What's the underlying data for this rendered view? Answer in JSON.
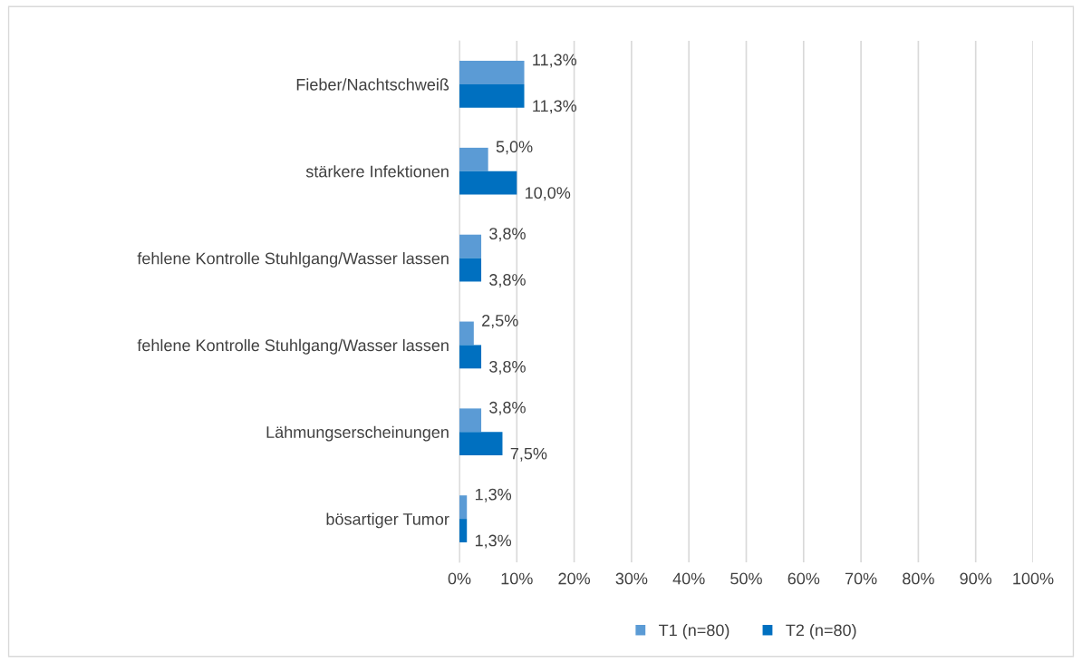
{
  "chart_data": {
    "type": "bar",
    "orientation": "horizontal",
    "categories": [
      "Fieber/Nachtschweiß",
      "stärkere Infektionen",
      "fehlene Kontrolle Stuhlgang/Wasser lassen",
      "fehlene Kontrolle Stuhlgang/Wasser lassen",
      "Lähmungserscheinungen",
      "bösartiger Tumor"
    ],
    "series": [
      {
        "name": "T1 (n=80)",
        "color": "#5b9bd5",
        "values": [
          11.3,
          5.0,
          3.8,
          2.5,
          3.8,
          1.3
        ],
        "value_labels": [
          "11,3%",
          "5,0%",
          "3,8%",
          "2,5%",
          "3,8%",
          "1,3%"
        ]
      },
      {
        "name": "T2 (n=80)",
        "color": "#0070c0",
        "values": [
          11.3,
          10.0,
          3.8,
          3.8,
          7.5,
          1.3
        ],
        "value_labels": [
          "11,3%",
          "10,0%",
          "3,8%",
          "3,8%",
          "7,5%",
          "1,3%"
        ]
      }
    ],
    "xlim": [
      0,
      100
    ],
    "xticks": [
      {
        "value": 0,
        "label": "0%"
      },
      {
        "value": 10,
        "label": "10%"
      },
      {
        "value": 20,
        "label": "20%"
      },
      {
        "value": 30,
        "label": "30%"
      },
      {
        "value": 40,
        "label": "40%"
      },
      {
        "value": 50,
        "label": "50%"
      },
      {
        "value": 60,
        "label": "60%"
      },
      {
        "value": 70,
        "label": "70%"
      },
      {
        "value": 80,
        "label": "80%"
      },
      {
        "value": 90,
        "label": "90%"
      },
      {
        "value": 100,
        "label": "100%"
      }
    ],
    "grid": "x",
    "legend": "bottom"
  }
}
